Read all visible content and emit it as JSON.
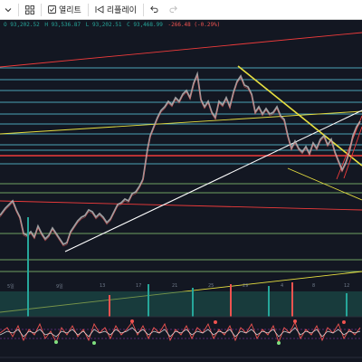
{
  "toolbar": {
    "items": [
      {
        "name": "chevron-down-icon"
      },
      {
        "name": "grid-icon"
      },
      {
        "name": "open-button",
        "label": "열리트"
      },
      {
        "name": "replay-button",
        "label": "리플레이"
      },
      {
        "name": "undo-icon"
      },
      {
        "name": "redo-icon"
      }
    ]
  },
  "ohlc": {
    "open": "O 93,202.52",
    "high": "H 93,536.87",
    "low": "L 93,202.51",
    "close": "C 93,468.99",
    "change": "-266.48 (-0.29%)"
  },
  "time_axis": [
    "5일",
    "9일",
    "13",
    "17",
    "21",
    "25",
    "29",
    "4",
    "8",
    "12"
  ],
  "colors": {
    "background": "#131722",
    "cyan_levels": "#5fd3e8",
    "green_levels": "#8fd27a",
    "red_levels": "#ef3b3b",
    "yellow_trend": "#e8e040",
    "white_trend": "#ffffff",
    "candle_up": "#26a69a",
    "candle_down": "#ef5350"
  }
}
